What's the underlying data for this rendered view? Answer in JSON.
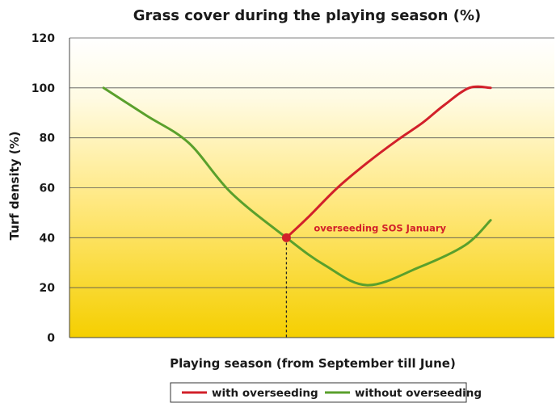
{
  "chart_data": {
    "type": "line",
    "title": "Grass cover during the playing season (%)",
    "xlabel": "Playing season (from September till June)",
    "ylabel": "Turf density (%)",
    "ylim": [
      0,
      120
    ],
    "yticks": [
      "0",
      "20",
      "40",
      "60",
      "80",
      "100",
      "120"
    ],
    "grid": true,
    "legend": "bottom",
    "series": [
      {
        "name": "with overseeding",
        "color": "#d2202a",
        "x": [
          4.3,
          4.8,
          5.5,
          6.2,
          6.9,
          7.5,
          8.0,
          8.6,
          9.1
        ],
        "values": [
          40,
          48,
          60,
          70,
          79,
          86,
          93,
          100,
          100
        ]
      },
      {
        "name": "without overseeding",
        "color": "#5aa02c",
        "x": [
          0,
          1.0,
          2.0,
          3.0,
          4.3,
          5.2,
          6.2,
          7.4,
          8.5,
          9.1
        ],
        "values": [
          100,
          89,
          78,
          58,
          40,
          29,
          21,
          28,
          37,
          47
        ]
      }
    ],
    "annotation": {
      "text": "overseeding SOS January",
      "x": 4.3,
      "y": 40,
      "color": "#d2202a"
    }
  }
}
